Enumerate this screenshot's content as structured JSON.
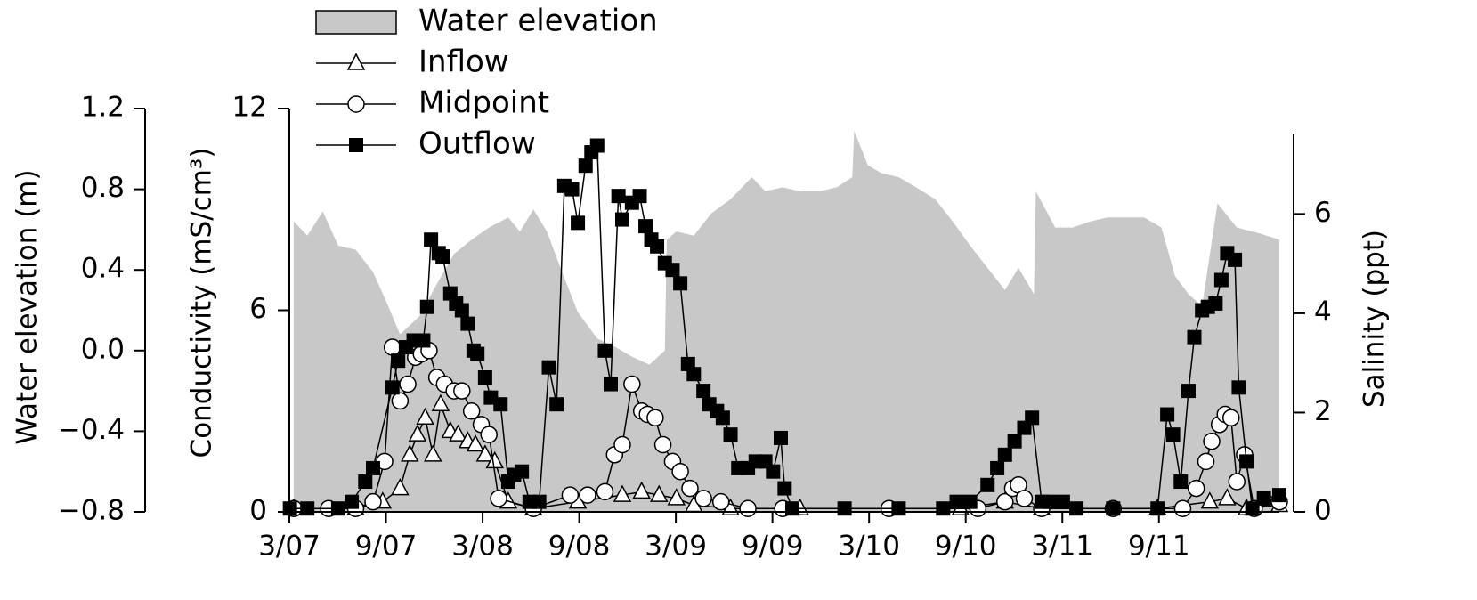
{
  "chart_data": {
    "type": "line",
    "ylabel": "Water elevation (m)",
    "y2label": "Conductivity (mS/cm³)",
    "y3label": "Salinity (ppt)",
    "xlim": [
      2007.167,
      2012.29
    ],
    "xticks": [
      {
        "value": 2007.167,
        "label": "3/07"
      },
      {
        "value": 2007.667,
        "label": "9/07"
      },
      {
        "value": 2008.167,
        "label": "3/08"
      },
      {
        "value": 2008.667,
        "label": "9/08"
      },
      {
        "value": 2009.167,
        "label": "3/09"
      },
      {
        "value": 2009.667,
        "label": "9/09"
      },
      {
        "value": 2010.167,
        "label": "3/10"
      },
      {
        "value": 2010.667,
        "label": "9/10"
      },
      {
        "value": 2011.167,
        "label": "3/11"
      },
      {
        "value": 2011.667,
        "label": "9/11"
      }
    ],
    "ylim": [
      -0.8,
      1.2
    ],
    "yticks": [
      1.2,
      0.8,
      0.4,
      {
        "value": 0,
        "label": "0.0"
      },
      {
        "value": -0.4,
        "label": "−0.4"
      },
      {
        "value": -0.8,
        "label": "−0.8"
      }
    ],
    "y2lim": [
      0,
      12
    ],
    "y2ticks": [
      0,
      6,
      12
    ],
    "y3lim": [
      0,
      7.62
    ],
    "y3ticks": [
      0,
      2,
      4,
      6
    ],
    "series": [
      {
        "name": "Water elevation",
        "color": "#c8c8c8",
        "fill": true,
        "marker": "none",
        "x": [
          2007.19,
          2007.26,
          2007.34,
          2007.42,
          2007.51,
          2007.6,
          2007.67,
          2007.74,
          2007.84,
          2007.93,
          2008.02,
          2008.11,
          2008.2,
          2008.3,
          2008.36,
          2008.43,
          2008.5,
          2008.57,
          2008.66,
          2008.76,
          2008.85,
          2008.94,
          2009.03,
          2009.11,
          2009.12,
          2009.17,
          2009.26,
          2009.35,
          2009.45,
          2009.56,
          2009.63,
          2009.72,
          2009.81,
          2009.91,
          2010.0,
          2010.08,
          2010.09,
          2010.16,
          2010.23,
          2010.32,
          2010.41,
          2010.51,
          2010.6,
          2010.69,
          2010.78,
          2010.87,
          2010.94,
          2011.02,
          2011.03,
          2011.13,
          2011.22,
          2011.31,
          2011.4,
          2011.5,
          2011.59,
          2011.68,
          2011.75,
          2011.82,
          2011.89,
          2011.97,
          2012.07,
          2012.19,
          2012.29
        ],
        "values": [
          0.64,
          0.57,
          0.69,
          0.52,
          0.5,
          0.39,
          0.24,
          0.08,
          0.17,
          0.33,
          0.48,
          0.55,
          0.61,
          0.66,
          0.59,
          0.7,
          0.59,
          0.41,
          0.19,
          0.06,
          0.02,
          -0.03,
          -0.07,
          0.0,
          0.55,
          0.59,
          0.57,
          0.68,
          0.75,
          0.86,
          0.79,
          0.81,
          0.79,
          0.79,
          0.81,
          0.86,
          1.09,
          0.92,
          0.88,
          0.86,
          0.81,
          0.75,
          0.64,
          0.52,
          0.41,
          0.3,
          0.41,
          0.28,
          0.79,
          0.61,
          0.61,
          0.64,
          0.66,
          0.66,
          0.66,
          0.61,
          0.37,
          0.28,
          0.22,
          0.73,
          0.61,
          0.58,
          0.55
        ]
      },
      {
        "name": "Inflow",
        "color": "#000000",
        "marker": "triangle",
        "axis": "y2",
        "x": [
          2007.19,
          2007.51,
          2007.65,
          2007.74,
          2007.79,
          2007.83,
          2007.87,
          2007.91,
          2007.95,
          2008.0,
          2008.04,
          2008.09,
          2008.13,
          2008.18,
          2008.23,
          2008.3,
          2008.43,
          2008.66,
          2008.89,
          2008.99,
          2009.08,
          2009.17,
          2009.26,
          2009.45,
          2009.81,
          2010.64,
          2010.87,
          2011.06,
          2011.66,
          2011.93,
          2012.02,
          2012.12,
          2012.29
        ],
        "values": [
          0.1,
          0.1,
          0.3,
          0.7,
          1.7,
          2.3,
          2.8,
          1.7,
          3.2,
          2.4,
          2.3,
          2.1,
          2.0,
          1.7,
          1.5,
          0.3,
          0.1,
          0.3,
          0.5,
          0.6,
          0.5,
          0.4,
          0.2,
          0.1,
          0.1,
          0.1,
          0.3,
          0.1,
          0.1,
          0.3,
          0.4,
          0.1,
          0.2
        ]
      },
      {
        "name": "Midpoint",
        "color": "#000000",
        "marker": "circle",
        "axis": "y2",
        "x": [
          2007.19,
          2007.37,
          2007.51,
          2007.6,
          2007.66,
          2007.7,
          2007.74,
          2007.78,
          2007.82,
          2007.85,
          2007.89,
          2007.93,
          2007.97,
          2008.02,
          2008.06,
          2008.11,
          2008.16,
          2008.2,
          2008.25,
          2008.43,
          2008.62,
          2008.71,
          2008.8,
          2008.85,
          2008.89,
          2008.94,
          2008.99,
          2009.02,
          2009.06,
          2009.1,
          2009.15,
          2009.19,
          2009.24,
          2009.31,
          2009.4,
          2009.54,
          2009.72,
          2010.27,
          2010.73,
          2010.87,
          2010.91,
          2010.94,
          2010.97,
          2011.06,
          2011.43,
          2011.79,
          2011.86,
          2011.91,
          2011.94,
          2011.98,
          2012.01,
          2012.04,
          2012.07,
          2012.11,
          2012.16,
          2012.29
        ],
        "values": [
          0.1,
          0.1,
          0.1,
          0.3,
          1.5,
          4.9,
          3.3,
          3.8,
          4.6,
          4.7,
          4.8,
          4.0,
          3.8,
          3.6,
          3.6,
          3.0,
          2.6,
          2.3,
          0.4,
          0.1,
          0.5,
          0.5,
          0.6,
          1.7,
          2.0,
          3.8,
          3.0,
          2.9,
          2.8,
          2.0,
          1.5,
          1.2,
          0.7,
          0.4,
          0.3,
          0.1,
          0.1,
          0.1,
          0.1,
          0.3,
          0.7,
          0.8,
          0.4,
          0.1,
          0.1,
          0.1,
          0.7,
          1.5,
          2.1,
          2.6,
          2.9,
          2.8,
          0.9,
          1.7,
          0.1,
          0.3
        ]
      },
      {
        "name": "Outflow",
        "color": "#000000",
        "marker": "square",
        "axis": "y2",
        "x": [
          2007.17,
          2007.26,
          2007.42,
          2007.49,
          2007.56,
          2007.6,
          2007.7,
          2007.73,
          2007.77,
          2007.81,
          2007.86,
          2007.88,
          2007.9,
          2007.94,
          2007.96,
          2008.0,
          2008.03,
          2008.06,
          2008.09,
          2008.12,
          2008.14,
          2008.18,
          2008.21,
          2008.26,
          2008.3,
          2008.33,
          2008.37,
          2008.41,
          2008.46,
          2008.51,
          2008.55,
          2008.59,
          2008.63,
          2008.66,
          2008.7,
          2008.73,
          2008.76,
          2008.8,
          2008.83,
          2008.87,
          2008.89,
          2008.94,
          2008.98,
          2009.01,
          2009.04,
          2009.07,
          2009.11,
          2009.15,
          2009.19,
          2009.23,
          2009.26,
          2009.31,
          2009.34,
          2009.38,
          2009.41,
          2009.45,
          2009.49,
          2009.54,
          2009.58,
          2009.63,
          2009.67,
          2009.71,
          2009.73,
          2009.77,
          2010.04,
          2010.32,
          2010.55,
          2010.62,
          2010.69,
          2010.78,
          2010.83,
          2010.87,
          2010.92,
          2010.97,
          2011.01,
          2011.06,
          2011.1,
          2011.17,
          2011.24,
          2011.43,
          2011.66,
          2011.71,
          2011.74,
          2011.78,
          2011.82,
          2011.85,
          2011.89,
          2011.92,
          2011.96,
          2011.99,
          2012.02,
          2012.06,
          2012.08,
          2012.12,
          2012.15,
          2012.21,
          2012.29
        ],
        "values": [
          0.1,
          0.1,
          0.1,
          0.3,
          0.9,
          1.3,
          3.7,
          4.5,
          4.9,
          5.1,
          5.1,
          6.1,
          8.1,
          7.7,
          7.6,
          6.5,
          6.2,
          6.0,
          5.6,
          4.8,
          4.7,
          4.0,
          3.4,
          3.2,
          0.9,
          1.1,
          1.2,
          0.3,
          0.3,
          4.3,
          3.2,
          9.7,
          9.6,
          8.6,
          10.3,
          10.7,
          10.9,
          4.8,
          3.8,
          9.4,
          8.7,
          9.2,
          9.4,
          8.5,
          8.1,
          7.9,
          7.4,
          7.2,
          6.8,
          4.4,
          4.1,
          3.6,
          3.2,
          3.0,
          2.8,
          2.3,
          1.3,
          1.3,
          1.5,
          1.5,
          1.2,
          2.2,
          0.7,
          0.1,
          0.1,
          0.1,
          0.1,
          0.3,
          0.3,
          0.8,
          1.3,
          1.7,
          2.1,
          2.5,
          2.8,
          0.3,
          0.3,
          0.3,
          0.1,
          0.1,
          0.1,
          2.9,
          2.3,
          0.9,
          3.6,
          5.2,
          6.0,
          6.1,
          6.2,
          6.9,
          7.7,
          7.5,
          3.7,
          1.5,
          0.1,
          0.4,
          0.5
        ]
      }
    ]
  }
}
